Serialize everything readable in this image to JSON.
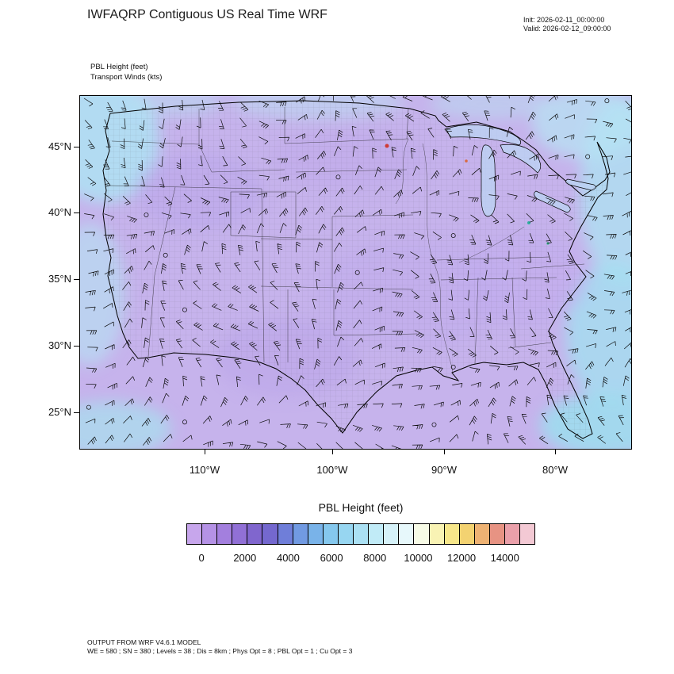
{
  "header": {
    "title": "IWFAQRP Contiguous US Real Time WRF",
    "init_line": "Init: 2026-02-11_00:00:00",
    "valid_line": "Valid: 2026-02-12_09:00:00"
  },
  "map": {
    "field_label_1": "PBL Height   (feet)",
    "field_label_2": "Transport Winds   (kts)"
  },
  "chart_data": {
    "type": "heatmap",
    "title": "IWFAQRP Contiguous US Real Time WRF",
    "region": "Contiguous US",
    "model_init": "2026-02-11_00:00:00",
    "model_valid": "2026-02-12_09:00:00",
    "fields": [
      {
        "name": "PBL Height",
        "units": "feet",
        "render": "filled contours"
      },
      {
        "name": "Transport Winds",
        "units": "kts",
        "render": "wind barbs"
      }
    ],
    "x_axis": {
      "ticks": [
        "110°W",
        "100°W",
        "90°W",
        "80°W"
      ]
    },
    "y_axis": {
      "ticks": [
        "45°N",
        "40°N",
        "35°N",
        "30°N",
        "25°N"
      ]
    },
    "colorbar": {
      "title": "PBL Height  (feet)",
      "position": "bottom",
      "tick_values": [
        "0",
        "2000",
        "4000",
        "6000",
        "8000",
        "10000",
        "12000",
        "14000"
      ],
      "colors": [
        "#c7a6ec",
        "#b592e6",
        "#a37fde",
        "#9170d6",
        "#8066ce",
        "#7468cf",
        "#6f7ed9",
        "#719ae2",
        "#79b3e9",
        "#85c8ee",
        "#97d6f1",
        "#abe1f4",
        "#c1ebf7",
        "#d6f2f9",
        "#e7f8fb",
        "#f7fbe6",
        "#f9f3b4",
        "#f7e78a",
        "#f3d271",
        "#eeb273",
        "#e79383",
        "#eaa0aa",
        "#f3c9d4"
      ]
    },
    "depicted_pattern": "PBL heights mostly 0-2000 ft (purple) across the CONUS land area; 2000-6000 ft (light blue/cyan) over Pacific, Atlantic and Gulf coastal waters; wind barbs of variable direction cover the whole domain; a few isolated small high-value specks near the Great Lakes and Appalachians"
  },
  "footer": {
    "line1": "OUTPUT FROM WRF V4.6.1 MODEL",
    "line2": "WE = 580 ; SN = 380 ; Levels = 38 ; Dis = 8km ; Phys Opt = 8 ; PBL Opt = 1 ; Cu Opt = 3"
  }
}
